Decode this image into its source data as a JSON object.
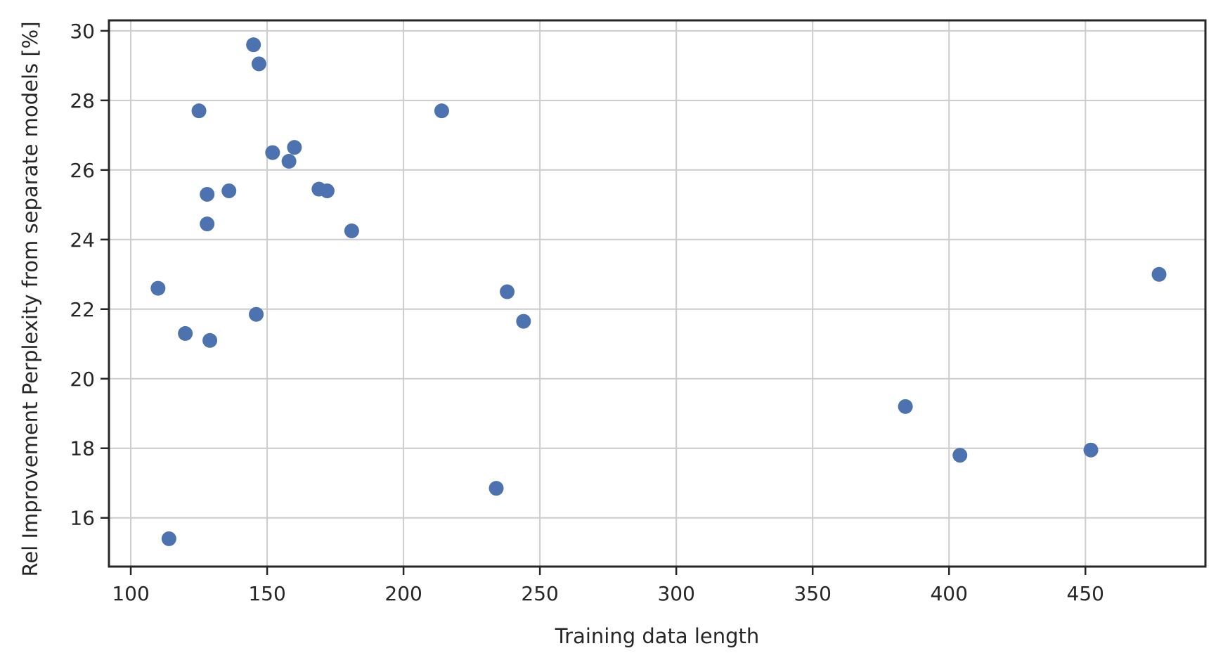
{
  "chart_data": {
    "type": "scatter",
    "title": "",
    "xlabel": "Training data length",
    "ylabel": "Rel Improvement Perplexity from separate models [%]",
    "xlim": [
      92,
      494
    ],
    "ylim": [
      14.6,
      30.3
    ],
    "xticks": [
      100,
      150,
      200,
      250,
      300,
      350,
      400,
      450
    ],
    "yticks": [
      16,
      18,
      20,
      22,
      24,
      26,
      28,
      30
    ],
    "grid": true,
    "legend": "none",
    "marker_color": "#4c72b0",
    "series": [
      {
        "points": [
          [
            110,
            22.6
          ],
          [
            114,
            15.4
          ],
          [
            120,
            21.3
          ],
          [
            125,
            27.7
          ],
          [
            128,
            25.3
          ],
          [
            128,
            24.45
          ],
          [
            129,
            21.1
          ],
          [
            136,
            25.4
          ],
          [
            145,
            29.6
          ],
          [
            146,
            21.85
          ],
          [
            147,
            29.05
          ],
          [
            152,
            26.5
          ],
          [
            158,
            26.25
          ],
          [
            160,
            26.65
          ],
          [
            169,
            25.45
          ],
          [
            172,
            25.4
          ],
          [
            181,
            24.25
          ],
          [
            214,
            27.7
          ],
          [
            234,
            16.85
          ],
          [
            238,
            22.5
          ],
          [
            244,
            21.65
          ],
          [
            384,
            19.2
          ],
          [
            404,
            17.8
          ],
          [
            452,
            17.95
          ],
          [
            477,
            23.0
          ]
        ]
      }
    ]
  }
}
